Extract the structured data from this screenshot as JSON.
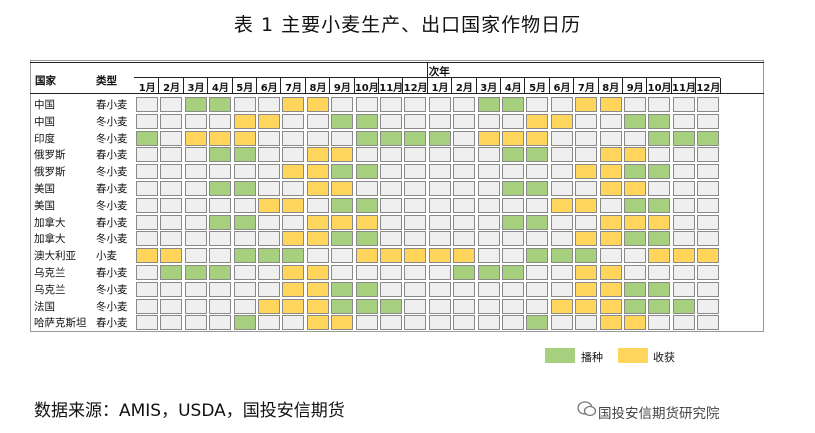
{
  "title": "表 1  主要小麦生产、出口国家作物日历",
  "headers": {
    "country": "国家",
    "type": "类型",
    "next_year": "次年"
  },
  "months": [
    "1月",
    "2月",
    "3月",
    "4月",
    "5月",
    "6月",
    "7月",
    "8月",
    "9月",
    "10月",
    "11月",
    "12月"
  ],
  "rows": [
    {
      "country": "中国",
      "type": "春小麦",
      "cells": [
        0,
        0,
        1,
        1,
        0,
        0,
        2,
        2,
        0,
        0,
        0,
        0,
        0,
        0,
        1,
        1,
        0,
        0,
        2,
        2,
        0,
        0,
        0,
        0
      ]
    },
    {
      "country": "中国",
      "type": "冬小麦",
      "cells": [
        0,
        0,
        0,
        0,
        2,
        2,
        0,
        0,
        1,
        1,
        0,
        0,
        0,
        0,
        0,
        0,
        2,
        2,
        0,
        0,
        1,
        1,
        0,
        0
      ]
    },
    {
      "country": "印度",
      "type": "冬小麦",
      "cells": [
        1,
        0,
        2,
        2,
        2,
        0,
        0,
        0,
        0,
        1,
        1,
        1,
        1,
        0,
        2,
        2,
        2,
        0,
        0,
        0,
        0,
        1,
        1,
        1
      ]
    },
    {
      "country": "俄罗斯",
      "type": "春小麦",
      "cells": [
        0,
        0,
        0,
        1,
        1,
        0,
        0,
        2,
        2,
        0,
        0,
        0,
        0,
        0,
        0,
        1,
        1,
        0,
        0,
        2,
        2,
        0,
        0,
        0
      ]
    },
    {
      "country": "俄罗斯",
      "type": "冬小麦",
      "cells": [
        0,
        0,
        0,
        0,
        0,
        0,
        2,
        2,
        1,
        1,
        0,
        0,
        0,
        0,
        0,
        0,
        0,
        0,
        2,
        2,
        1,
        1,
        0,
        0
      ]
    },
    {
      "country": "美国",
      "type": "春小麦",
      "cells": [
        0,
        0,
        0,
        1,
        1,
        0,
        0,
        2,
        2,
        0,
        0,
        0,
        0,
        0,
        0,
        1,
        1,
        0,
        0,
        2,
        2,
        0,
        0,
        0
      ]
    },
    {
      "country": "美国",
      "type": "冬小麦",
      "cells": [
        0,
        0,
        0,
        0,
        0,
        2,
        2,
        0,
        1,
        1,
        0,
        0,
        0,
        0,
        0,
        0,
        0,
        2,
        2,
        0,
        1,
        1,
        0,
        0
      ]
    },
    {
      "country": "加拿大",
      "type": "春小麦",
      "cells": [
        0,
        0,
        0,
        1,
        1,
        0,
        0,
        2,
        2,
        2,
        0,
        0,
        0,
        0,
        0,
        1,
        1,
        0,
        0,
        2,
        2,
        2,
        0,
        0
      ]
    },
    {
      "country": "加拿大",
      "type": "冬小麦",
      "cells": [
        0,
        0,
        0,
        0,
        0,
        0,
        2,
        2,
        1,
        1,
        0,
        0,
        0,
        0,
        0,
        0,
        0,
        0,
        2,
        2,
        1,
        1,
        0,
        0
      ]
    },
    {
      "country": "澳大利亚",
      "type": "小麦",
      "cells": [
        2,
        2,
        0,
        0,
        1,
        1,
        1,
        0,
        0,
        2,
        2,
        2,
        2,
        2,
        0,
        0,
        1,
        1,
        1,
        0,
        0,
        2,
        2,
        2
      ]
    },
    {
      "country": "乌克兰",
      "type": "春小麦",
      "cells": [
        0,
        1,
        1,
        1,
        0,
        0,
        2,
        2,
        0,
        0,
        0,
        0,
        0,
        1,
        1,
        1,
        0,
        0,
        2,
        2,
        0,
        0,
        0,
        0
      ]
    },
    {
      "country": "乌克兰",
      "type": "冬小麦",
      "cells": [
        0,
        0,
        0,
        0,
        0,
        0,
        2,
        2,
        1,
        1,
        0,
        0,
        0,
        0,
        0,
        0,
        0,
        0,
        2,
        2,
        1,
        1,
        0,
        0
      ]
    },
    {
      "country": "法国",
      "type": "冬小麦",
      "cells": [
        0,
        0,
        0,
        0,
        0,
        2,
        2,
        2,
        1,
        1,
        1,
        0,
        0,
        0,
        0,
        0,
        0,
        2,
        2,
        2,
        1,
        1,
        1,
        0
      ]
    },
    {
      "country": "哈萨克斯坦",
      "type": "春小麦",
      "cells": [
        0,
        0,
        0,
        0,
        1,
        0,
        0,
        2,
        2,
        0,
        0,
        0,
        0,
        0,
        0,
        0,
        1,
        0,
        0,
        2,
        2,
        0,
        0,
        0
      ]
    }
  ],
  "legend": {
    "sow": "播种",
    "harvest": "收获"
  },
  "colors": {
    "sow": "#a6cf7e",
    "harvest": "#ffd55c",
    "empty": "#efefef"
  },
  "source": "数据来源：AMIS，USDA，国投安信期货",
  "watermark": "国投安信期货研究院"
}
